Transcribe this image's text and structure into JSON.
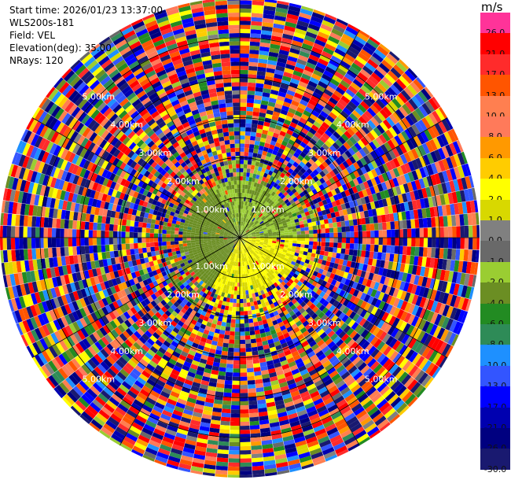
{
  "header": {
    "start_time": "Start time: 2026/01/23 13:37:00",
    "instrument": "WLS200s-181",
    "field": "Field: VEL",
    "elevation": "Elevation(deg): 35.00",
    "nrays": "NRays: 120"
  },
  "colorbar": {
    "unit": "m/s",
    "bins": [
      {
        "label": "26.0",
        "color": "#ff3399"
      },
      {
        "label": "21.0",
        "color": "#ff0000"
      },
      {
        "label": "17.0",
        "color": "#ff2b2b"
      },
      {
        "label": "13.0",
        "color": "#ff5500"
      },
      {
        "label": "10.0",
        "color": "#ff7f50"
      },
      {
        "label": "8.0",
        "color": "#ff7a5a"
      },
      {
        "label": "6.0",
        "color": "#ff9900"
      },
      {
        "label": "4.0",
        "color": "#ffcc00"
      },
      {
        "label": "2.0",
        "color": "#ffff00"
      },
      {
        "label": "1.0",
        "color": "#d8d800"
      },
      {
        "label": "0.0",
        "color": "#808080"
      },
      {
        "label": "-1.0",
        "color": "#696969"
      },
      {
        "label": "-2.0",
        "color": "#9acd32"
      },
      {
        "label": "-4.0",
        "color": "#6b8e23"
      },
      {
        "label": "-6.0",
        "color": "#228b22"
      },
      {
        "label": "-8.0",
        "color": "#2e8b57"
      },
      {
        "label": "-10.0",
        "color": "#1e90ff"
      },
      {
        "label": "-13.0",
        "color": "#3355ff"
      },
      {
        "label": "-17.0",
        "color": "#0000ff"
      },
      {
        "label": "-21.0",
        "color": "#0000b0"
      },
      {
        "label": "-26.0",
        "color": "#000080"
      },
      {
        "label": "-30.0",
        "color": "#191970"
      }
    ]
  },
  "chart_data": {
    "type": "heatmap",
    "title": "",
    "field": "VEL",
    "unit": "m/s",
    "elevation_deg": 35.0,
    "nrays": 120,
    "range_rings_km": [
      1.0,
      2.0,
      3.0,
      4.0,
      5.0
    ],
    "ring_labels": [
      "1.00km",
      "2.00km",
      "3.00km",
      "4.00km",
      "5.00km"
    ],
    "max_range_km": 6.0,
    "spokes_every_deg": 30,
    "inner_region": {
      "radius_km": 1.5,
      "sectors": [
        {
          "from_deg": 210,
          "to_deg": 330,
          "value": -3.0
        },
        {
          "from_deg": 330,
          "to_deg": 90,
          "value": -2.0
        },
        {
          "from_deg": 90,
          "to_deg": 210,
          "value": 2.0
        }
      ]
    },
    "outer_region": "noise (random velocities)"
  }
}
